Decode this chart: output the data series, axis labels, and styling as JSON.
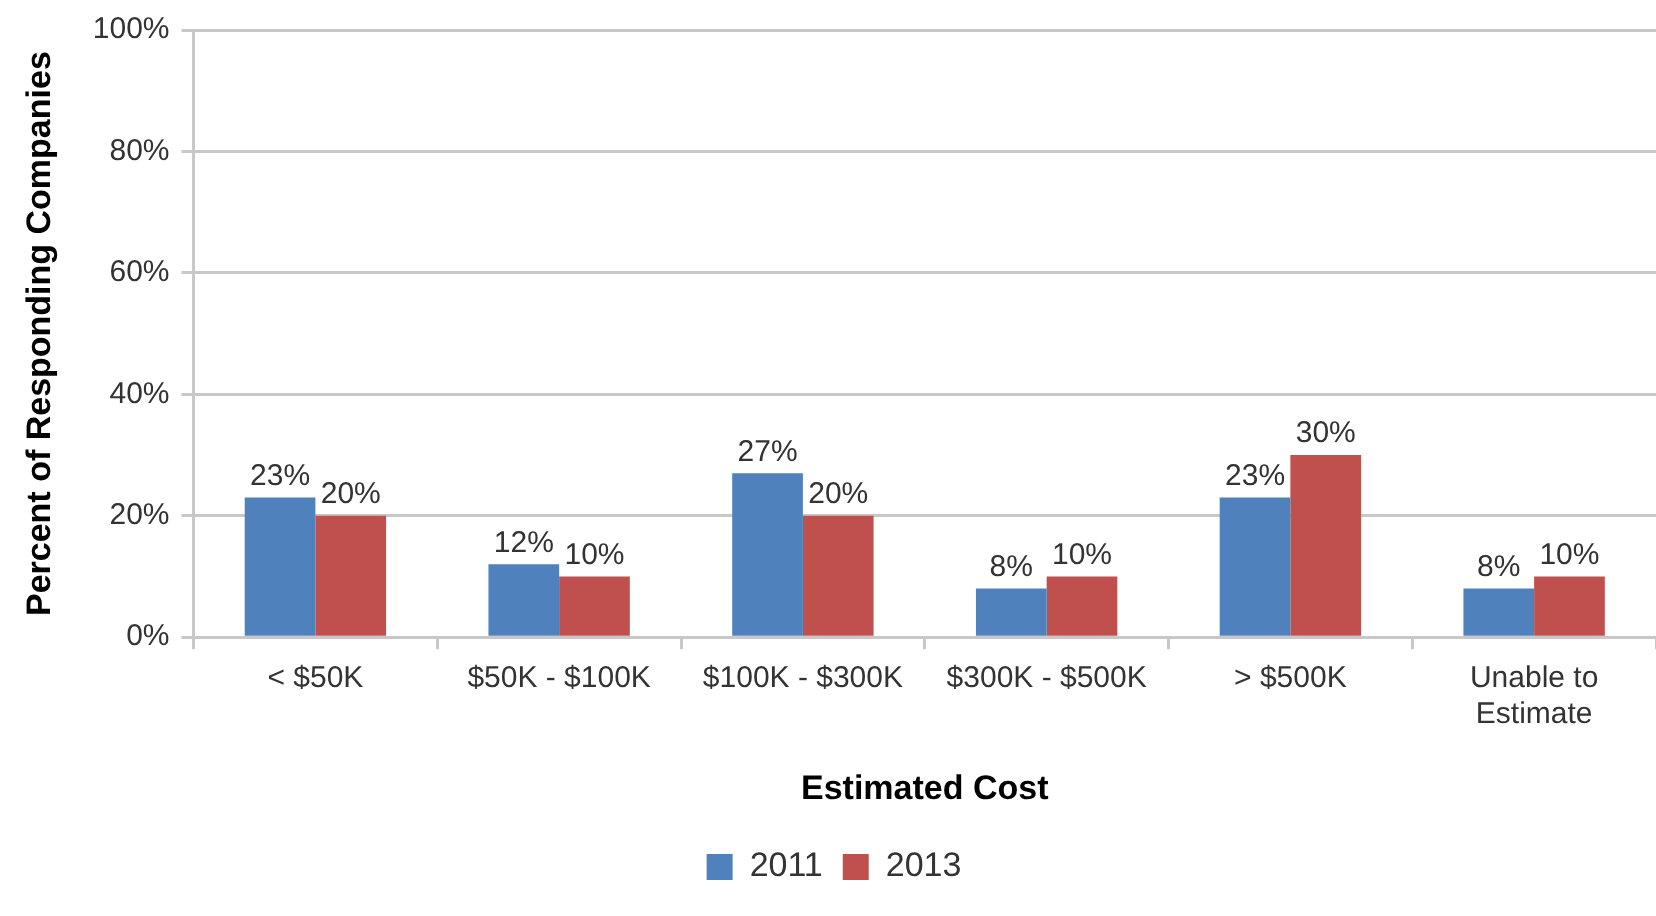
{
  "chart_data": {
    "type": "bar",
    "xlabel": "Estimated Cost",
    "ylabel": "Percent of Responding Companies",
    "categories": [
      "< $50K",
      "$50K - $100K",
      "$100K - $300K",
      "$300K - $500K",
      "> $500K",
      "Unable to Estimate"
    ],
    "series": [
      {
        "name": "2011",
        "color": "#4f81bd",
        "values": [
          23,
          12,
          27,
          8,
          23,
          8
        ],
        "value_labels": [
          "23%",
          "12%",
          "27%",
          "8%",
          "23%",
          "8%"
        ]
      },
      {
        "name": "2013",
        "color": "#c0504d",
        "values": [
          20,
          10,
          20,
          10,
          30,
          10
        ],
        "value_labels": [
          "20%",
          "10%",
          "20%",
          "10%",
          "30%",
          "10%"
        ]
      }
    ],
    "ylim": [
      0,
      100
    ],
    "yticks": [
      {
        "value": 0,
        "label": "0%"
      },
      {
        "value": 20,
        "label": "20%"
      },
      {
        "value": 40,
        "label": "40%"
      },
      {
        "value": 60,
        "label": "60%"
      },
      {
        "value": 80,
        "label": "80%"
      },
      {
        "value": 100,
        "label": "100%"
      }
    ],
    "grid": "y",
    "legend": "bottom"
  }
}
